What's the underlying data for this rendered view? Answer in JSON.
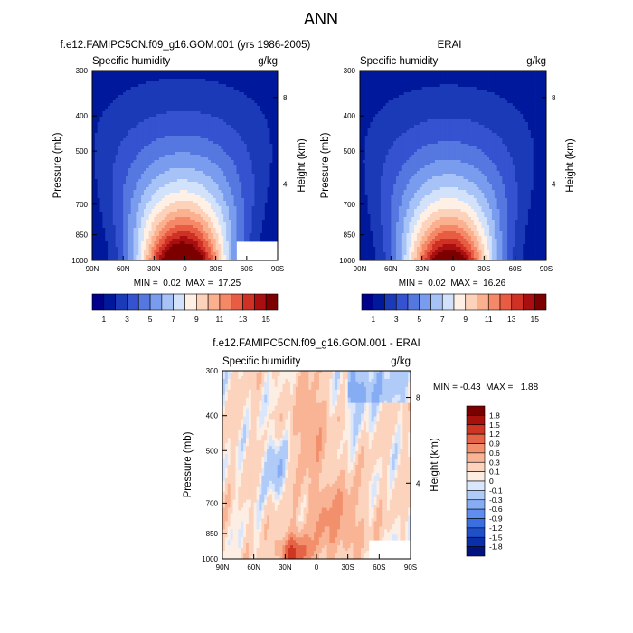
{
  "figure": {
    "title": "ANN"
  },
  "chart_data": [
    {
      "type": "heatmap",
      "title": "f.e12.FAMIPC5CN.f09_g16.GOM.001 (yrs 1986-2005)",
      "left_label": "Specific humidity",
      "right_label": "g/kg",
      "xlabel": "",
      "ylabel": "Pressure (mb)",
      "y2label": "Height (km)",
      "x_ticks": [
        "90N",
        "60N",
        "30N",
        "0",
        "30S",
        "60S",
        "90S"
      ],
      "x_values": [
        90,
        60,
        30,
        0,
        -30,
        -60,
        -90
      ],
      "y_ticks": [
        "300",
        "400",
        "500",
        "700",
        "850",
        "1000"
      ],
      "y_values": [
        300,
        400,
        500,
        700,
        850,
        1000
      ],
      "y2_ticks": [
        "8",
        "4"
      ],
      "xlim": [
        90,
        -90
      ],
      "ylim": [
        1000,
        300
      ],
      "y_scale": "log",
      "stats_text": "MIN =  0.02  MAX =  17.25",
      "min": 0.02,
      "max": 17.25,
      "peak_lat": 2,
      "missing_region": {
        "lat_from": -50,
        "lat_to": -90,
        "p_from": 880,
        "p_to": 1000
      },
      "levels": [
        1,
        2,
        3,
        4,
        5,
        6,
        7,
        8,
        9,
        10,
        11,
        12,
        13,
        14,
        15
      ],
      "colors": [
        "#00008b",
        "#00199c",
        "#1a3ab8",
        "#3553d0",
        "#5577e0",
        "#7a9cee",
        "#a6c2f7",
        "#d2e2fb",
        "#fff0e6",
        "#fdd2bb",
        "#fbb08f",
        "#f58866",
        "#e85c44",
        "#cf3124",
        "#a90e10",
        "#7d0000"
      ],
      "colorbar_labels": [
        "1",
        "3",
        "5",
        "7",
        "9",
        "11",
        "13",
        "15"
      ]
    },
    {
      "type": "heatmap",
      "title": "ERAI",
      "left_label": "Specific humidity",
      "right_label": "g/kg",
      "xlabel": "",
      "ylabel": "Pressure (mb)",
      "y2label": "Height (km)",
      "x_ticks": [
        "90N",
        "60N",
        "30N",
        "0",
        "30S",
        "60S",
        "90S"
      ],
      "x_values": [
        90,
        60,
        30,
        0,
        -30,
        -60,
        -90
      ],
      "y_ticks": [
        "300",
        "400",
        "500",
        "700",
        "850",
        "1000"
      ],
      "y_values": [
        300,
        400,
        500,
        700,
        850,
        1000
      ],
      "y2_ticks": [
        "8",
        "4"
      ],
      "xlim": [
        90,
        -90
      ],
      "ylim": [
        1000,
        300
      ],
      "y_scale": "log",
      "stats_text": "MIN =  0.02  MAX =  16.26",
      "min": 0.02,
      "max": 16.26,
      "peak_lat": 4,
      "levels": [
        1,
        2,
        3,
        4,
        5,
        6,
        7,
        8,
        9,
        10,
        11,
        12,
        13,
        14,
        15
      ],
      "colors": [
        "#00008b",
        "#00199c",
        "#1a3ab8",
        "#3553d0",
        "#5577e0",
        "#7a9cee",
        "#a6c2f7",
        "#d2e2fb",
        "#fff0e6",
        "#fdd2bb",
        "#fbb08f",
        "#f58866",
        "#e85c44",
        "#cf3124",
        "#a90e10",
        "#7d0000"
      ],
      "colorbar_labels": [
        "1",
        "3",
        "5",
        "7",
        "9",
        "11",
        "13",
        "15"
      ]
    },
    {
      "type": "heatmap",
      "title": "f.e12.FAMIPC5CN.f09_g16.GOM.001 - ERAI",
      "left_label": "Specific humidity",
      "right_label": "g/kg",
      "xlabel": "",
      "ylabel": "Pressure (mb)",
      "y2label": "Height (km)",
      "x_ticks": [
        "90N",
        "60N",
        "30N",
        "0",
        "30S",
        "60S",
        "90S"
      ],
      "x_values": [
        90,
        60,
        30,
        0,
        -30,
        -60,
        -90
      ],
      "y_ticks": [
        "300",
        "400",
        "500",
        "700",
        "850",
        "1000"
      ],
      "y_values": [
        300,
        400,
        500,
        700,
        850,
        1000
      ],
      "y2_ticks": [
        "8",
        "4"
      ],
      "xlim": [
        90,
        -90
      ],
      "ylim": [
        1000,
        300
      ],
      "y_scale": "log",
      "stats_text": "MIN = -0.43  MAX =   1.88",
      "min": -0.43,
      "max": 1.88,
      "missing_region": {
        "lat_from": -50,
        "lat_to": -90,
        "p_from": 880,
        "p_to": 1000
      },
      "levels": [
        -1.8,
        -1.5,
        -1.2,
        -0.9,
        -0.6,
        -0.3,
        -0.1,
        0,
        0.1,
        0.3,
        0.6,
        0.9,
        1.2,
        1.5,
        1.8
      ],
      "colors": [
        "#00137f",
        "#0a2fa8",
        "#1f4fc9",
        "#3b6fe0",
        "#5f8eee",
        "#86acf4",
        "#b0cbf8",
        "#d9e6fb",
        "#fdeee4",
        "#fcd3bd",
        "#f8b495",
        "#f2906d",
        "#e56346",
        "#cd3622",
        "#a6110b",
        "#7a0000"
      ],
      "colorbar_labels": [
        "1.8",
        "1.5",
        "1.2",
        "0.9",
        "0.6",
        "0.3",
        "0.1",
        "0",
        "-0.1",
        "-0.3",
        "-0.6",
        "-0.9",
        "-1.2",
        "-1.5",
        "-1.8"
      ]
    }
  ]
}
